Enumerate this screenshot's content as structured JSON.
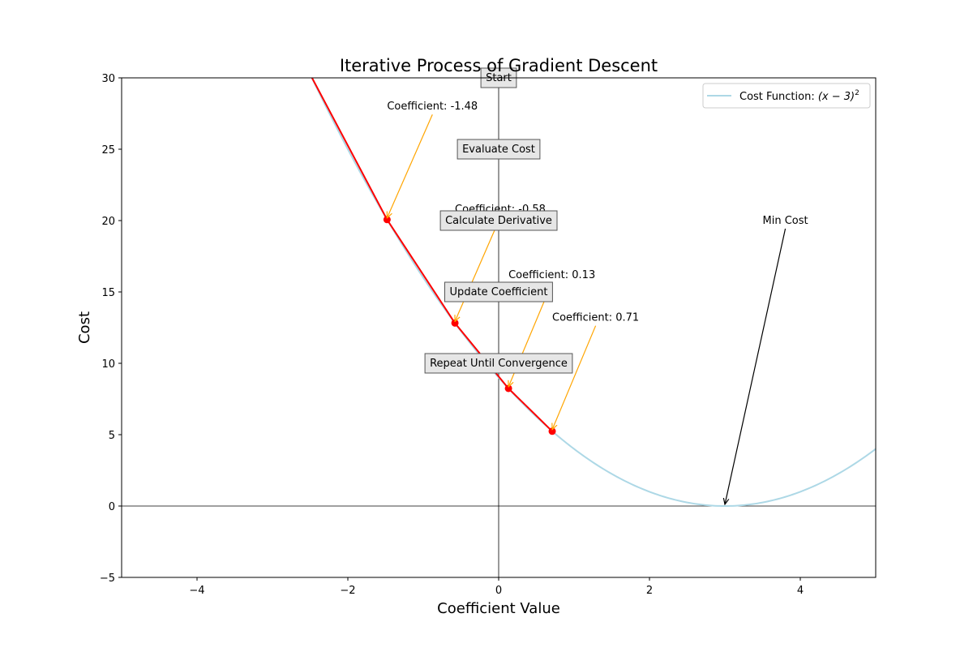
{
  "chart_data": {
    "type": "line",
    "title": "Iterative Process of Gradient Descent",
    "xlabel": "Coefficient Value",
    "ylabel": "Cost",
    "xlim": [
      -5,
      5
    ],
    "ylim": [
      -5,
      30
    ],
    "xticks": [
      -4,
      -2,
      0,
      2,
      4
    ],
    "yticks": [
      -5,
      0,
      5,
      10,
      15,
      20,
      25,
      30
    ],
    "xtick_labels": [
      "−4",
      "−2",
      "0",
      "2",
      "4"
    ],
    "ytick_labels": [
      "−5",
      "0",
      "5",
      "10",
      "15",
      "20",
      "25",
      "30"
    ],
    "grid": false,
    "legend_position": "top-right",
    "reference_lines": {
      "horizontal_at_y": 0,
      "vertical_at_x": 0
    },
    "cost_function": {
      "legend_label_prefix": "Cost Function: ",
      "legend_label_math": "(x − 3)",
      "legend_label_exponent": "2",
      "color": "#add8e6",
      "minimum_x": 3
    },
    "descent_path": {
      "color": "#ff0000",
      "points": [
        {
          "x": -2.5,
          "y": 30.25
        },
        {
          "x": -1.48,
          "y": 20.07
        },
        {
          "x": -0.58,
          "y": 12.82
        },
        {
          "x": 0.13,
          "y": 8.24
        },
        {
          "x": 0.71,
          "y": 5.24
        }
      ]
    },
    "annotations": [
      {
        "text": "Coefficient: -1.48",
        "point": [
          -1.48,
          20.07
        ],
        "text_at": [
          -1.48,
          28
        ],
        "color": "#ffa500"
      },
      {
        "text": "Coefficient: -0.58",
        "point": [
          -0.58,
          12.82
        ],
        "text_at": [
          -0.58,
          20.8
        ],
        "color": "#ffa500"
      },
      {
        "text": "Coefficient: 0.13",
        "point": [
          0.13,
          8.24
        ],
        "text_at": [
          0.13,
          16.2
        ],
        "color": "#ffa500"
      },
      {
        "text": "Coefficient: 0.71",
        "point": [
          0.71,
          5.24
        ],
        "text_at": [
          0.71,
          13.2
        ],
        "color": "#ffa500"
      },
      {
        "text": "Min Cost",
        "point": [
          3,
          0
        ],
        "text_at": [
          3.5,
          20
        ],
        "color": "#000000",
        "text_color": "#ff0000"
      }
    ],
    "step_boxes": [
      {
        "text": "Start",
        "at": [
          0,
          30
        ]
      },
      {
        "text": "Evaluate Cost",
        "at": [
          0,
          25
        ]
      },
      {
        "text": "Calculate Derivative",
        "at": [
          0,
          20
        ]
      },
      {
        "text": "Update Coefficient",
        "at": [
          0,
          15
        ]
      },
      {
        "text": "Repeat Until Convergence",
        "at": [
          0,
          10
        ]
      }
    ]
  }
}
